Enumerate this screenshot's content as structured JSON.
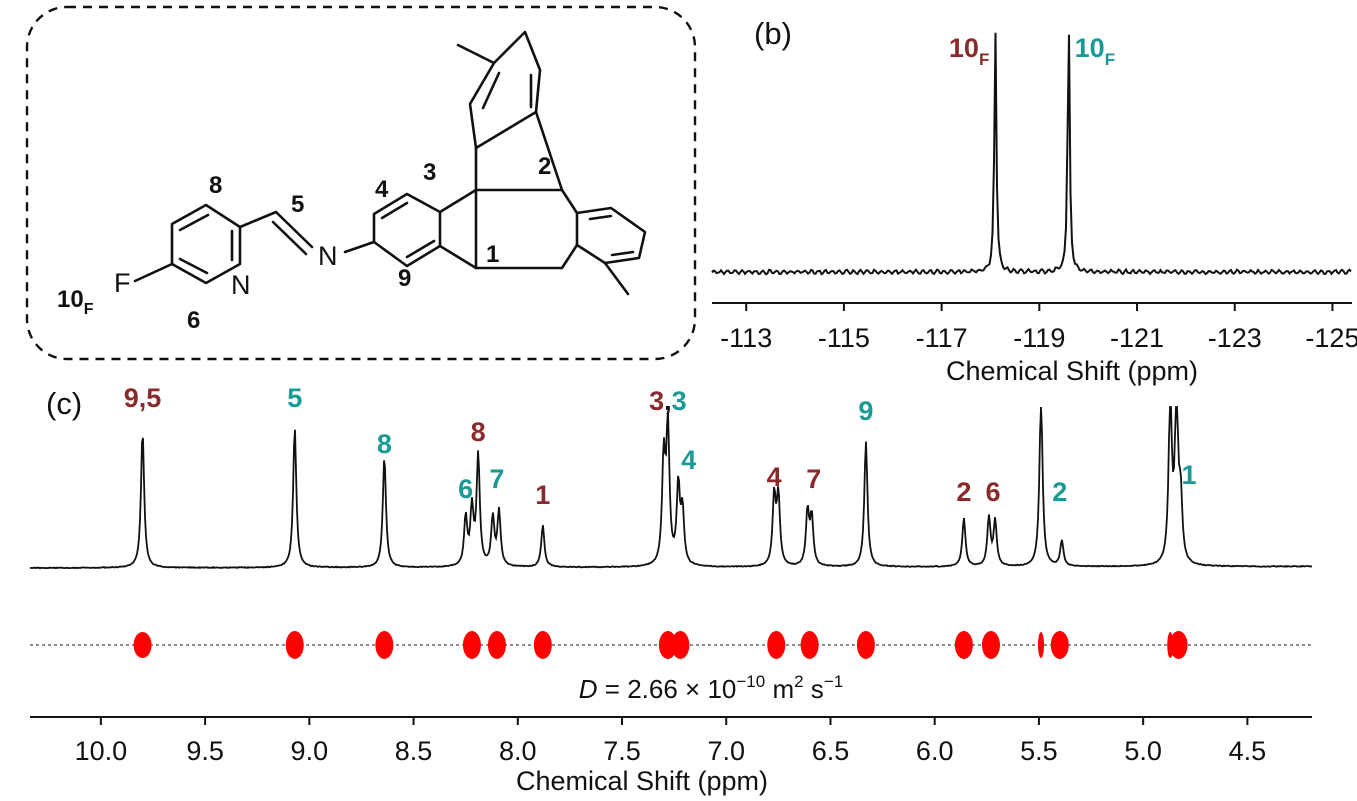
{
  "colors": {
    "red": "#8b2a2a",
    "teal": "#1a9a96",
    "dosy": "#ff0000",
    "line": "#111111"
  },
  "structure": {
    "numbers": [
      "1",
      "2",
      "3",
      "4",
      "5",
      "6",
      "8",
      "9"
    ],
    "atoms": {
      "F": "F",
      "N_imine": "N",
      "N_ring": "N"
    },
    "fluoro_label": "10",
    "fluoro_sub": "F"
  },
  "chart_data": [
    {
      "panel": "(b)",
      "type": "line",
      "xlabel": "Chemical Shift (ppm)",
      "xlim": [
        -112.3,
        -125.4
      ],
      "ticks": [
        -113,
        -115,
        -117,
        -119,
        -121,
        -123,
        -125
      ],
      "peaks": [
        {
          "x": -118.1,
          "height": 1.0,
          "label": "10",
          "sub": "F",
          "color": "red"
        },
        {
          "x": -119.6,
          "height": 1.05,
          "label": "10",
          "sub": "F",
          "color": "teal"
        }
      ]
    },
    {
      "panel": "(c)",
      "type": "line",
      "xlabel": "Chemical Shift (ppm)",
      "xlim": [
        10.34,
        4.19
      ],
      "ticks": [
        10.0,
        9.5,
        9.0,
        8.5,
        8.0,
        7.5,
        7.0,
        6.5,
        6.0,
        5.5,
        5.0,
        4.5
      ],
      "peaks": [
        {
          "x": 9.8,
          "height": 0.85
        },
        {
          "x": 9.07,
          "height": 0.87
        },
        {
          "x": 8.64,
          "height": 0.69
        },
        {
          "x": 8.25,
          "height": 0.3
        },
        {
          "x": 8.22,
          "height": 0.35
        },
        {
          "x": 8.19,
          "height": 0.69
        },
        {
          "x": 8.12,
          "height": 0.3
        },
        {
          "x": 8.09,
          "height": 0.34
        },
        {
          "x": 7.88,
          "height": 0.26
        },
        {
          "x": 7.3,
          "height": 0.65
        },
        {
          "x": 7.28,
          "height": 0.85
        },
        {
          "x": 7.23,
          "height": 0.49
        },
        {
          "x": 7.21,
          "height": 0.33
        },
        {
          "x": 6.77,
          "height": 0.43
        },
        {
          "x": 6.75,
          "height": 0.43
        },
        {
          "x": 6.61,
          "height": 0.34
        },
        {
          "x": 6.59,
          "height": 0.3
        },
        {
          "x": 6.33,
          "height": 0.78
        },
        {
          "x": 5.86,
          "height": 0.3
        },
        {
          "x": 5.74,
          "height": 0.3
        },
        {
          "x": 5.71,
          "height": 0.28
        },
        {
          "x": 5.49,
          "height": 1.05
        },
        {
          "x": 5.39,
          "height": 0.16
        },
        {
          "x": 4.87,
          "height": 1.05
        },
        {
          "x": 4.84,
          "height": 1.05
        },
        {
          "x": 4.82,
          "height": 0.38
        }
      ],
      "labels": [
        {
          "x": 9.8,
          "parts": [
            {
              "t": "9,5",
              "c": "red"
            }
          ]
        },
        {
          "x": 9.07,
          "parts": [
            {
              "t": "5",
              "c": "teal"
            }
          ]
        },
        {
          "x": 8.64,
          "parts": [
            {
              "t": "8",
              "c": "teal"
            }
          ]
        },
        {
          "x": 8.19,
          "parts": [
            {
              "t": "8",
              "c": "red"
            }
          ]
        },
        {
          "x": 8.25,
          "parts": [
            {
              "t": "6",
              "c": "teal"
            }
          ]
        },
        {
          "x": 8.1,
          "parts": [
            {
              "t": "7",
              "c": "teal"
            }
          ]
        },
        {
          "x": 7.88,
          "parts": [
            {
              "t": "1",
              "c": "red"
            }
          ]
        },
        {
          "x": 7.28,
          "parts": [
            {
              "t": "3",
              "c": "red"
            },
            {
              "t": ",",
              "c": "line"
            },
            {
              "t": "3",
              "c": "teal"
            }
          ]
        },
        {
          "x": 7.18,
          "parts": [
            {
              "t": "4",
              "c": "teal"
            }
          ]
        },
        {
          "x": 6.77,
          "parts": [
            {
              "t": "4",
              "c": "red"
            }
          ]
        },
        {
          "x": 6.58,
          "parts": [
            {
              "t": "7",
              "c": "red"
            }
          ]
        },
        {
          "x": 6.33,
          "parts": [
            {
              "t": "9",
              "c": "teal"
            }
          ]
        },
        {
          "x": 5.86,
          "parts": [
            {
              "t": "2",
              "c": "red"
            }
          ]
        },
        {
          "x": 5.72,
          "parts": [
            {
              "t": "6",
              "c": "red"
            }
          ]
        },
        {
          "x": 5.4,
          "parts": [
            {
              "t": "2",
              "c": "teal"
            }
          ]
        },
        {
          "x": 4.78,
          "parts": [
            {
              "t": "1",
              "c": "teal"
            }
          ]
        }
      ],
      "dosy_spots": [
        9.8,
        9.07,
        8.64,
        8.22,
        8.1,
        7.88,
        7.28,
        7.22,
        6.76,
        6.6,
        6.33,
        5.86,
        5.73,
        5.49,
        5.4,
        4.87,
        4.83
      ],
      "diffusion": {
        "symbol": "D",
        "equals": " = 2.66 × 10",
        "exp": "−10",
        "unit": " m",
        "unit_exp": "2",
        "unit2": " s",
        "unit2_exp": "−1"
      }
    }
  ]
}
